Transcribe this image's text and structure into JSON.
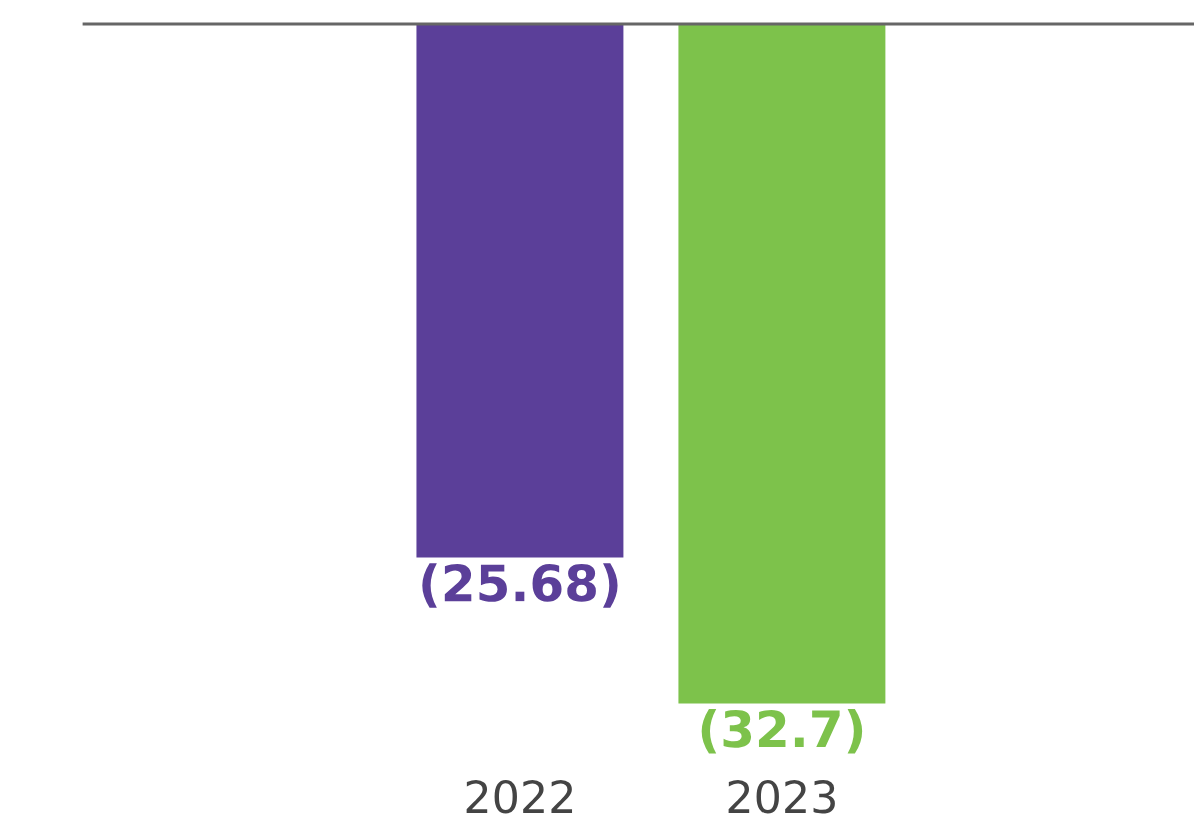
{
  "chart_data": {
    "type": "bar",
    "categories": [
      "2022",
      "2023"
    ],
    "values": [
      -25.68,
      -32.7
    ],
    "colors": [
      "#5b3f99",
      "#7dc24b"
    ],
    "value_labels": [
      "(25.68)",
      "(32.7)"
    ],
    "grid": false,
    "legend": false
  }
}
